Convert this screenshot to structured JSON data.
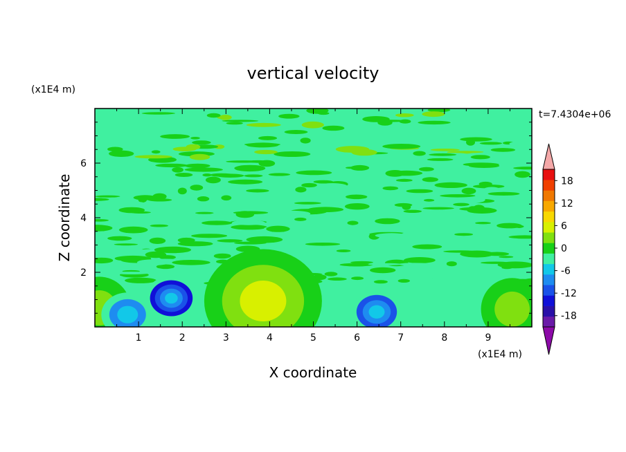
{
  "chart_data": {
    "type": "heatmap",
    "title": "vertical velocity",
    "xlabel": "X coordinate",
    "ylabel": "Z coordinate",
    "x_unit": "(x1E4 m)",
    "y_unit": "(x1E4 m)",
    "time_label": "t=7.4304e+06",
    "xlim": [
      0,
      10
    ],
    "ylim": [
      0,
      8
    ],
    "x_ticks": [
      1,
      2,
      3,
      4,
      5,
      6,
      7,
      8,
      9
    ],
    "y_ticks": [
      2,
      4,
      6
    ],
    "colorbar": {
      "levels": [
        -21,
        -18,
        -15,
        -12,
        -9,
        -6,
        -3,
        0,
        3,
        6,
        9,
        12,
        15,
        18,
        21
      ],
      "tick_labels": [
        "18",
        "12",
        "6",
        "0",
        "-6",
        "-12",
        "-18"
      ],
      "tick_values": [
        18,
        12,
        6,
        0,
        -6,
        -12,
        -18
      ],
      "colors": [
        "#6a1aa8",
        "#2a10a8",
        "#1010d8",
        "#1a52e8",
        "#1e8cf0",
        "#12c8e8",
        "#40f0a0",
        "#18d018",
        "#80e010",
        "#d8f000",
        "#f8d800",
        "#f8a800",
        "#f07800",
        "#f04000",
        "#e81010"
      ],
      "under_color": "#8c0aa8",
      "over_color": "#f4a8a8"
    },
    "features": [
      {
        "kind": "updraft",
        "x": 3.85,
        "z": 0.95,
        "peak": 7
      },
      {
        "kind": "updraft",
        "x": 9.55,
        "z": 0.65,
        "peak": 4
      },
      {
        "kind": "updraft",
        "x": 0.1,
        "z": 0.7,
        "peak": 3
      },
      {
        "kind": "downdraft",
        "x": 1.75,
        "z": 1.05,
        "peak": -13
      },
      {
        "kind": "downdraft",
        "x": 6.45,
        "z": 0.55,
        "peak": -10
      },
      {
        "kind": "downdraft",
        "x": 0.75,
        "z": 0.45,
        "peak": -7
      }
    ]
  }
}
